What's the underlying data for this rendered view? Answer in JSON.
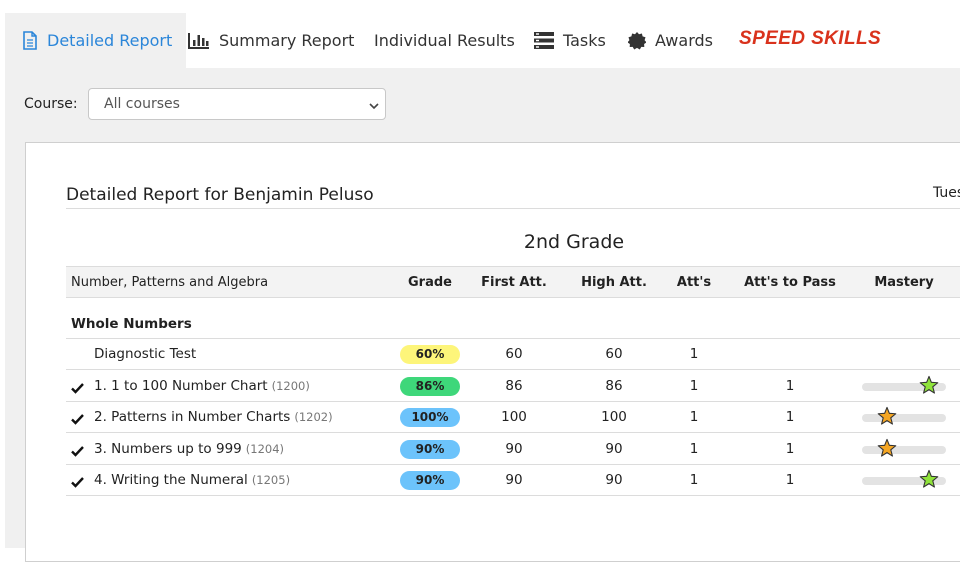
{
  "tabs": [
    {
      "label": "Detailed Report",
      "icon": "document-icon",
      "active": true
    },
    {
      "label": "Summary Report",
      "icon": "bar-chart-icon"
    },
    {
      "label": "Individual Results",
      "icon": ""
    },
    {
      "label": "Tasks",
      "icon": "tasks-icon"
    },
    {
      "label": "Awards",
      "icon": "award-badge-icon"
    }
  ],
  "brand": "SPEED SKILLS",
  "filter": {
    "label": "Course:",
    "selected": "All courses"
  },
  "report": {
    "title": "Detailed Report for Benjamin Peluso",
    "date_partial": "Tues",
    "grade_title": "2nd Grade",
    "strand": "Number, Patterns and Algebra",
    "columns": [
      "Grade",
      "First Att.",
      "High Att.",
      "Att's",
      "Att's to Pass",
      "Mastery"
    ],
    "section": "Whole Numbers",
    "rows": [
      {
        "checked": false,
        "name": "Diagnostic Test",
        "code": "",
        "grade": "60%",
        "grade_color": "#fdf57a",
        "first": "60",
        "high": "60",
        "atts": "1",
        "atts_to_pass": "",
        "mastery": null
      },
      {
        "checked": true,
        "name": "1. 1 to 100 Number Chart",
        "code": "(1200)",
        "grade": "86%",
        "grade_color": "#3ed77a",
        "first": "86",
        "high": "86",
        "atts": "1",
        "atts_to_pass": "1",
        "mastery": {
          "level": 0.8,
          "star_color": "#8fe33a"
        }
      },
      {
        "checked": true,
        "name": "2. Patterns in Number Charts",
        "code": "(1202)",
        "grade": "100%",
        "grade_color": "#6cc3fb",
        "first": "100",
        "high": "100",
        "atts": "1",
        "atts_to_pass": "1",
        "mastery": {
          "level": 0.3,
          "star_color": "#f5a623"
        }
      },
      {
        "checked": true,
        "name": "3. Numbers up to 999",
        "code": "(1204)",
        "grade": "90%",
        "grade_color": "#6cc3fb",
        "first": "90",
        "high": "90",
        "atts": "1",
        "atts_to_pass": "1",
        "mastery": {
          "level": 0.3,
          "star_color": "#f5a623"
        }
      },
      {
        "checked": true,
        "name": "4. Writing the Numeral",
        "code": "(1205)",
        "grade": "90%",
        "grade_color": "#6cc3fb",
        "first": "90",
        "high": "90",
        "atts": "1",
        "atts_to_pass": "1",
        "mastery": {
          "level": 0.8,
          "star_color": "#8fe33a"
        }
      }
    ]
  },
  "colors": {
    "accent": "#2b86d9",
    "brand": "#d9321c"
  }
}
